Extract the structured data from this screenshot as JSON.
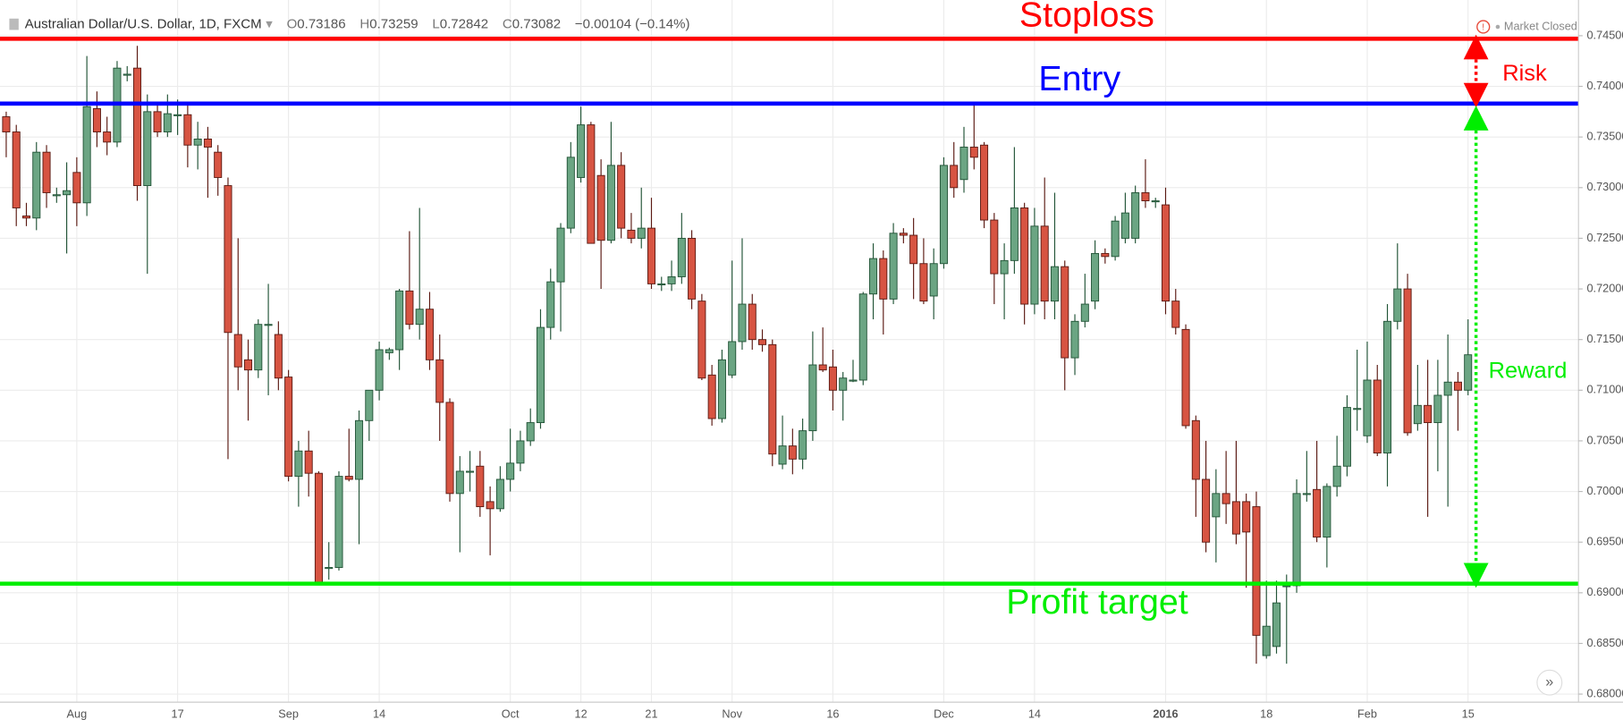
{
  "chart_data": {
    "type": "candlestick",
    "header": {
      "symbol": "Australian Dollar/U.S. Dollar, 1D, FXCM",
      "ohlc": [
        {
          "key": "O",
          "value": "0.73186"
        },
        {
          "key": "H",
          "value": "0.73259"
        },
        {
          "key": "L",
          "value": "0.72842"
        },
        {
          "key": "C",
          "value": "0.73082"
        }
      ],
      "change": "−0.00104 (−0.14%)",
      "status": "Market Closed"
    },
    "categories": [
      null,
      null,
      null,
      null,
      null,
      null,
      null,
      "Aug",
      null,
      null,
      null,
      null,
      null,
      null,
      null,
      null,
      null,
      "17",
      null,
      null,
      null,
      null,
      null,
      null,
      null,
      null,
      null,
      null,
      "Sep",
      null,
      null,
      null,
      null,
      null,
      null,
      null,
      null,
      "14",
      null,
      null,
      null,
      null,
      null,
      null,
      null,
      null,
      null,
      null,
      null,
      null,
      "Oct",
      null,
      null,
      null,
      null,
      null,
      null,
      "12",
      null,
      null,
      null,
      null,
      null,
      null,
      "21",
      null,
      null,
      null,
      null,
      null,
      null,
      null,
      "Nov",
      null,
      null,
      null,
      null,
      null,
      null,
      null,
      null,
      null,
      "16",
      null,
      null,
      null,
      null,
      null,
      null,
      null,
      null,
      null,
      null,
      "Dec",
      null,
      null,
      null,
      null,
      null,
      null,
      null,
      null,
      "14",
      null,
      null,
      null,
      null,
      null,
      null,
      null,
      null,
      null,
      null,
      null,
      null,
      "2016",
      null,
      null,
      null,
      null,
      null,
      null,
      null,
      null,
      null,
      "18",
      null,
      null,
      null,
      null,
      null,
      null,
      null,
      null,
      null,
      "Feb",
      null,
      null,
      null,
      null,
      null,
      null,
      null,
      null,
      null,
      "15"
    ],
    "open": [
      0.737,
      0.7355,
      0.7272,
      0.727,
      0.7335,
      0.7293,
      0.7293,
      0.7315,
      0.7285,
      0.7378,
      0.7355,
      0.7345,
      0.7412,
      0.7418,
      0.7302,
      0.7375,
      0.7355,
      0.7372,
      0.7372,
      0.7342,
      0.7348,
      0.7335,
      0.7302,
      0.7155,
      0.713,
      0.712,
      0.7165,
      0.7155,
      0.7113,
      0.7015,
      0.704,
      0.7018,
      0.6925,
      0.6925,
      0.7015,
      0.7012,
      0.707,
      0.71,
      0.7137,
      0.714,
      0.7198,
      0.7165,
      0.718,
      0.713,
      0.7088,
      0.6998,
      0.702,
      0.7025,
      0.699,
      0.6983,
      0.7012,
      0.7028,
      0.705,
      0.7068,
      0.7162,
      0.7207,
      0.726,
      0.731,
      0.7362,
      0.7312,
      0.7248,
      0.7322,
      0.7258,
      0.725,
      0.726,
      0.7205,
      0.7205,
      0.7212,
      0.725,
      0.7188,
      0.7115,
      0.7072,
      0.7115,
      0.7148,
      0.7185,
      0.715,
      0.7145,
      0.7027,
      0.7045,
      0.7032,
      0.706,
      0.7125,
      0.7123,
      0.71,
      0.711,
      0.711,
      0.7195,
      0.723,
      0.719,
      0.7255,
      0.7253,
      0.7225,
      0.7193,
      0.7225,
      0.7322,
      0.7308,
      0.734,
      0.7342,
      0.7268,
      0.7215,
      0.7228,
      0.728,
      0.7185,
      0.7262,
      0.7188,
      0.7222,
      0.7132,
      0.7168,
      0.7188,
      0.7235,
      0.7232,
      0.725,
      0.725,
      0.7295,
      0.7287,
      0.7283,
      0.7188,
      0.716,
      0.707,
      0.7012,
      0.6975,
      0.6998,
      0.699,
      0.699,
      0.6985,
      0.6838,
      0.6847,
      0.6907,
      0.6907,
      0.6998,
      0.7002,
      0.6955,
      0.7005,
      0.7025,
      0.7082,
      0.7055,
      0.711,
      0.7038,
      0.7168,
      0.72,
      0.7067,
      0.7085,
      0.7068,
      0.7095,
      0.7108,
      0.71
    ],
    "high": [
      0.7375,
      0.7362,
      0.7285,
      0.7345,
      0.7342,
      0.73,
      0.7325,
      0.733,
      0.743,
      0.7395,
      0.737,
      0.7425,
      0.742,
      0.744,
      0.7392,
      0.7385,
      0.7392,
      0.7387,
      0.7385,
      0.7365,
      0.736,
      0.7342,
      0.731,
      0.725,
      0.715,
      0.717,
      0.7205,
      0.7168,
      0.712,
      0.705,
      0.706,
      0.702,
      0.695,
      0.702,
      0.7062,
      0.708,
      0.71,
      0.7148,
      0.7142,
      0.72,
      0.7257,
      0.728,
      0.7197,
      0.7155,
      0.7092,
      0.7035,
      0.704,
      0.704,
      0.7005,
      0.7025,
      0.7062,
      0.706,
      0.7082,
      0.718,
      0.722,
      0.7265,
      0.7345,
      0.738,
      0.7365,
      0.7328,
      0.7365,
      0.7335,
      0.7275,
      0.73,
      0.729,
      0.7212,
      0.7228,
      0.7275,
      0.7258,
      0.7195,
      0.7125,
      0.714,
      0.7228,
      0.725,
      0.7195,
      0.716,
      0.715,
      0.7075,
      0.7062,
      0.7072,
      0.7158,
      0.7162,
      0.714,
      0.7118,
      0.713,
      0.7197,
      0.7245,
      0.7238,
      0.7265,
      0.726,
      0.727,
      0.725,
      0.724,
      0.733,
      0.7345,
      0.736,
      0.7385,
      0.7345,
      0.7275,
      0.7245,
      0.734,
      0.7285,
      0.728,
      0.731,
      0.7295,
      0.7228,
      0.7175,
      0.7215,
      0.7248,
      0.724,
      0.7272,
      0.7295,
      0.7302,
      0.7328,
      0.729,
      0.73,
      0.72,
      0.7165,
      0.7075,
      0.705,
      0.7022,
      0.704,
      0.705,
      0.6998,
      0.7,
      0.6912,
      0.6912,
      0.6918,
      0.7012,
      0.704,
      0.705,
      0.7008,
      0.7055,
      0.7095,
      0.714,
      0.7148,
      0.7125,
      0.7185,
      0.7245,
      0.7215,
      0.7125,
      0.713,
      0.713,
      0.7155,
      0.7118,
      0.717
    ],
    "low": [
      0.733,
      0.7262,
      0.7262,
      0.7258,
      0.728,
      0.7285,
      0.7235,
      0.7262,
      0.7272,
      0.734,
      0.7332,
      0.734,
      0.7405,
      0.7287,
      0.7215,
      0.735,
      0.735,
      0.7352,
      0.732,
      0.7318,
      0.729,
      0.7292,
      0.7032,
      0.71,
      0.707,
      0.7112,
      0.7095,
      0.71,
      0.701,
      0.6985,
      0.6995,
      0.691,
      0.6913,
      0.6922,
      0.701,
      0.6948,
      0.705,
      0.709,
      0.713,
      0.712,
      0.716,
      0.715,
      0.712,
      0.705,
      0.699,
      0.694,
      0.7,
      0.6975,
      0.6937,
      0.698,
      0.7,
      0.702,
      0.7045,
      0.7062,
      0.715,
      0.7158,
      0.7255,
      0.7305,
      0.7245,
      0.72,
      0.7245,
      0.725,
      0.7245,
      0.724,
      0.72,
      0.7198,
      0.7198,
      0.7205,
      0.718,
      0.711,
      0.7065,
      0.7068,
      0.7112,
      0.714,
      0.714,
      0.7138,
      0.7025,
      0.7022,
      0.7017,
      0.7022,
      0.705,
      0.7118,
      0.708,
      0.707,
      0.7108,
      0.7105,
      0.717,
      0.7155,
      0.7185,
      0.7245,
      0.719,
      0.7185,
      0.717,
      0.722,
      0.729,
      0.7295,
      0.7318,
      0.726,
      0.7185,
      0.717,
      0.7215,
      0.7165,
      0.7175,
      0.717,
      0.717,
      0.71,
      0.7115,
      0.7162,
      0.718,
      0.7225,
      0.7228,
      0.7245,
      0.7245,
      0.728,
      0.728,
      0.7175,
      0.7155,
      0.7062,
      0.6975,
      0.694,
      0.693,
      0.6968,
      0.6948,
      0.6905,
      0.683,
      0.6835,
      0.684,
      0.683,
      0.69,
      0.699,
      0.695,
      0.6925,
      0.6995,
      0.7015,
      0.706,
      0.7048,
      0.7035,
      0.7005,
      0.716,
      0.7055,
      0.706,
      0.6975,
      0.702,
      0.6985,
      0.706,
      0.7095
    ],
    "close": [
      0.7355,
      0.728,
      0.727,
      0.7335,
      0.7295,
      0.7293,
      0.7297,
      0.7285,
      0.738,
      0.7355,
      0.7345,
      0.7418,
      0.7412,
      0.7302,
      0.7375,
      0.7355,
      0.7373,
      0.7372,
      0.7342,
      0.7348,
      0.734,
      0.731,
      0.7157,
      0.7123,
      0.712,
      0.7165,
      0.7165,
      0.7112,
      0.7015,
      0.704,
      0.7018,
      0.691,
      0.6925,
      0.7015,
      0.7012,
      0.707,
      0.71,
      0.714,
      0.714,
      0.7198,
      0.7165,
      0.718,
      0.713,
      0.7088,
      0.6998,
      0.702,
      0.702,
      0.6985,
      0.6983,
      0.7012,
      0.7028,
      0.705,
      0.7068,
      0.7162,
      0.7207,
      0.726,
      0.733,
      0.7362,
      0.7245,
      0.7248,
      0.7322,
      0.726,
      0.725,
      0.726,
      0.7205,
      0.7205,
      0.7212,
      0.725,
      0.719,
      0.7112,
      0.7072,
      0.713,
      0.7148,
      0.7185,
      0.715,
      0.7145,
      0.7037,
      0.7045,
      0.7032,
      0.706,
      0.7125,
      0.712,
      0.71,
      0.7112,
      0.711,
      0.7195,
      0.723,
      0.719,
      0.7255,
      0.7253,
      0.7225,
      0.7188,
      0.7225,
      0.7322,
      0.73,
      0.734,
      0.733,
      0.7268,
      0.7215,
      0.7228,
      0.728,
      0.7185,
      0.7262,
      0.7188,
      0.7222,
      0.7132,
      0.7168,
      0.7185,
      0.7235,
      0.7232,
      0.7267,
      0.7275,
      0.7295,
      0.7287,
      0.7287,
      0.7188,
      0.7162,
      0.7065,
      0.7012,
      0.695,
      0.6998,
      0.6988,
      0.6958,
      0.696,
      0.6858,
      0.6867,
      0.689,
      0.6907,
      0.6998,
      0.6998,
      0.6955,
      0.7005,
      0.7025,
      0.7083,
      0.7082,
      0.711,
      0.7038,
      0.7168,
      0.72,
      0.7058,
      0.7085,
      0.7068,
      0.7095,
      0.7108,
      0.71,
      0.7135
    ],
    "up_color": "#6ba583",
    "down_color": "#d75442",
    "ylim": [
      0.6792,
      0.7472
    ],
    "yticks": [
      {
        "value": 0.68,
        "label": "0.68000"
      },
      {
        "value": 0.685,
        "label": "0.68500"
      },
      {
        "value": 0.69,
        "label": "0.69000"
      },
      {
        "value": 0.695,
        "label": "0.69500"
      },
      {
        "value": 0.7,
        "label": "0.70000"
      },
      {
        "value": 0.705,
        "label": "0.70500"
      },
      {
        "value": 0.71,
        "label": "0.71000"
      },
      {
        "value": 0.715,
        "label": "0.71500"
      },
      {
        "value": 0.72,
        "label": "0.72000"
      },
      {
        "value": 0.725,
        "label": "0.72500"
      },
      {
        "value": 0.73,
        "label": "0.73000"
      },
      {
        "value": 0.735,
        "label": "0.73500"
      },
      {
        "value": 0.74,
        "label": "0.74000"
      },
      {
        "value": 0.745,
        "label": "0.74500"
      }
    ],
    "grid": true,
    "levels": [
      {
        "name": "Stoploss",
        "value": 0.7447,
        "color": "#ff0000"
      },
      {
        "name": "Entry",
        "value": 0.7383,
        "color": "#0000ff"
      },
      {
        "name": "Profit target",
        "value": 0.6909,
        "color": "#00ee00"
      }
    ],
    "risk_label": "Risk",
    "reward_label": "Reward"
  }
}
